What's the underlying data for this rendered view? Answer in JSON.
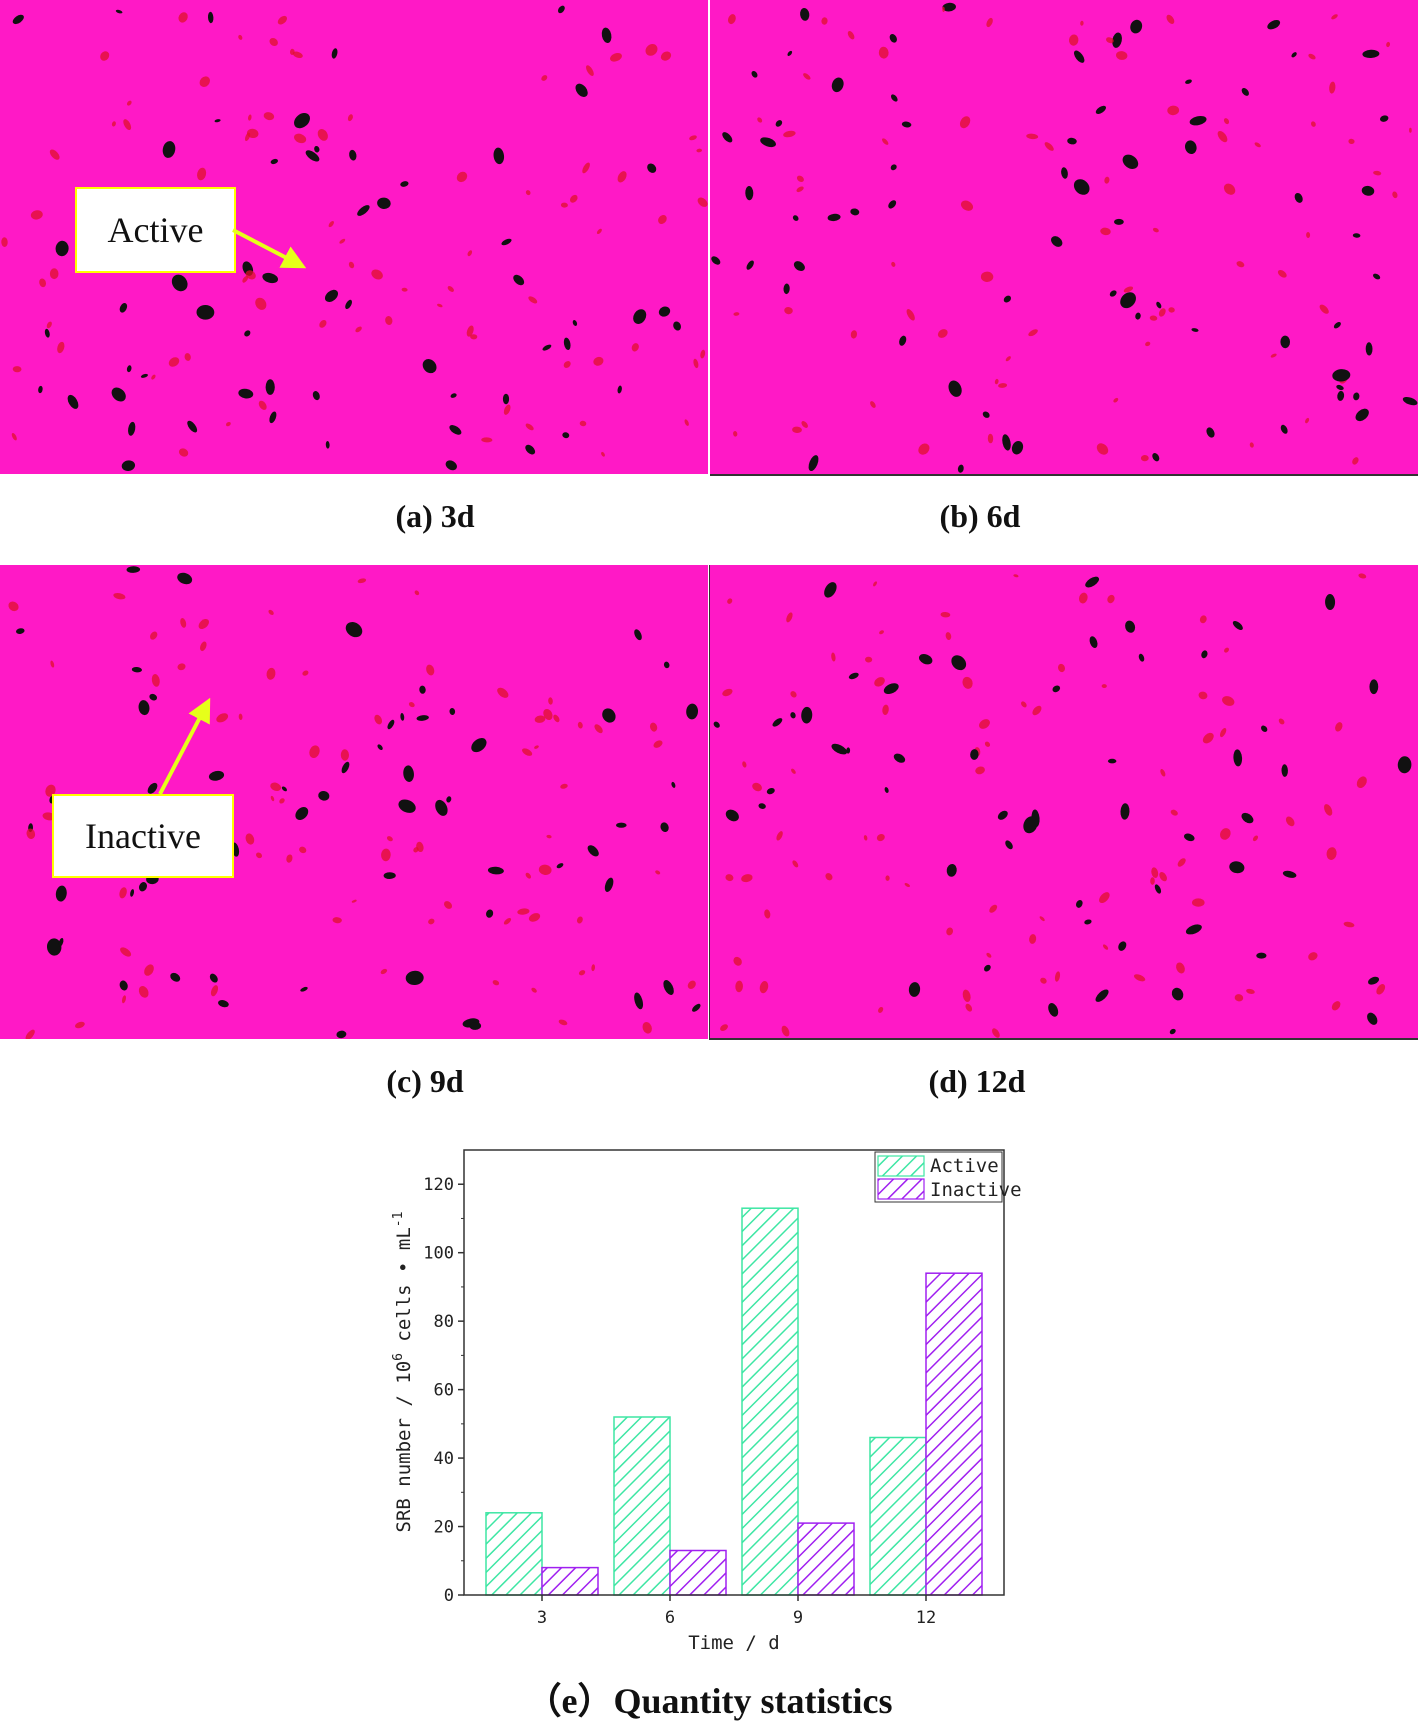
{
  "panels": {
    "a_caption": "(a) 3d",
    "b_caption": "(b) 6d",
    "c_caption": "(c) 9d",
    "d_caption": "(d) 12d",
    "e_caption": "（e）Quantity statistics"
  },
  "annotations": {
    "active_label": "Active",
    "inactive_label": "Inactive"
  },
  "colors": {
    "image_background": "#ff19c6",
    "active_cell": "#111111",
    "inactive_cell": "#e0102a",
    "callout_border": "#ffff00",
    "arrow": "#e6ff1a",
    "active_bar": "#3ee6a4",
    "inactive_bar": "#a020f0"
  },
  "chart_data": {
    "type": "bar",
    "categories": [
      "3",
      "6",
      "9",
      "12"
    ],
    "series": [
      {
        "name": "Active",
        "values": [
          24,
          52,
          113,
          46
        ],
        "pattern": "hatch-green"
      },
      {
        "name": "Inactive",
        "values": [
          8,
          13,
          21,
          94
        ],
        "pattern": "hatch-purple"
      }
    ],
    "xlabel": "Time / d",
    "ylabel": "SRB number / 10",
    "ylabel_sup1": "6",
    "ylabel_mid": " cells • mL",
    "ylabel_sup2": "-1",
    "ylim": [
      0,
      130
    ],
    "yticks": [
      "0",
      "20",
      "40",
      "60",
      "80",
      "100",
      "120"
    ],
    "legend_position": "top-right",
    "grid": false
  }
}
